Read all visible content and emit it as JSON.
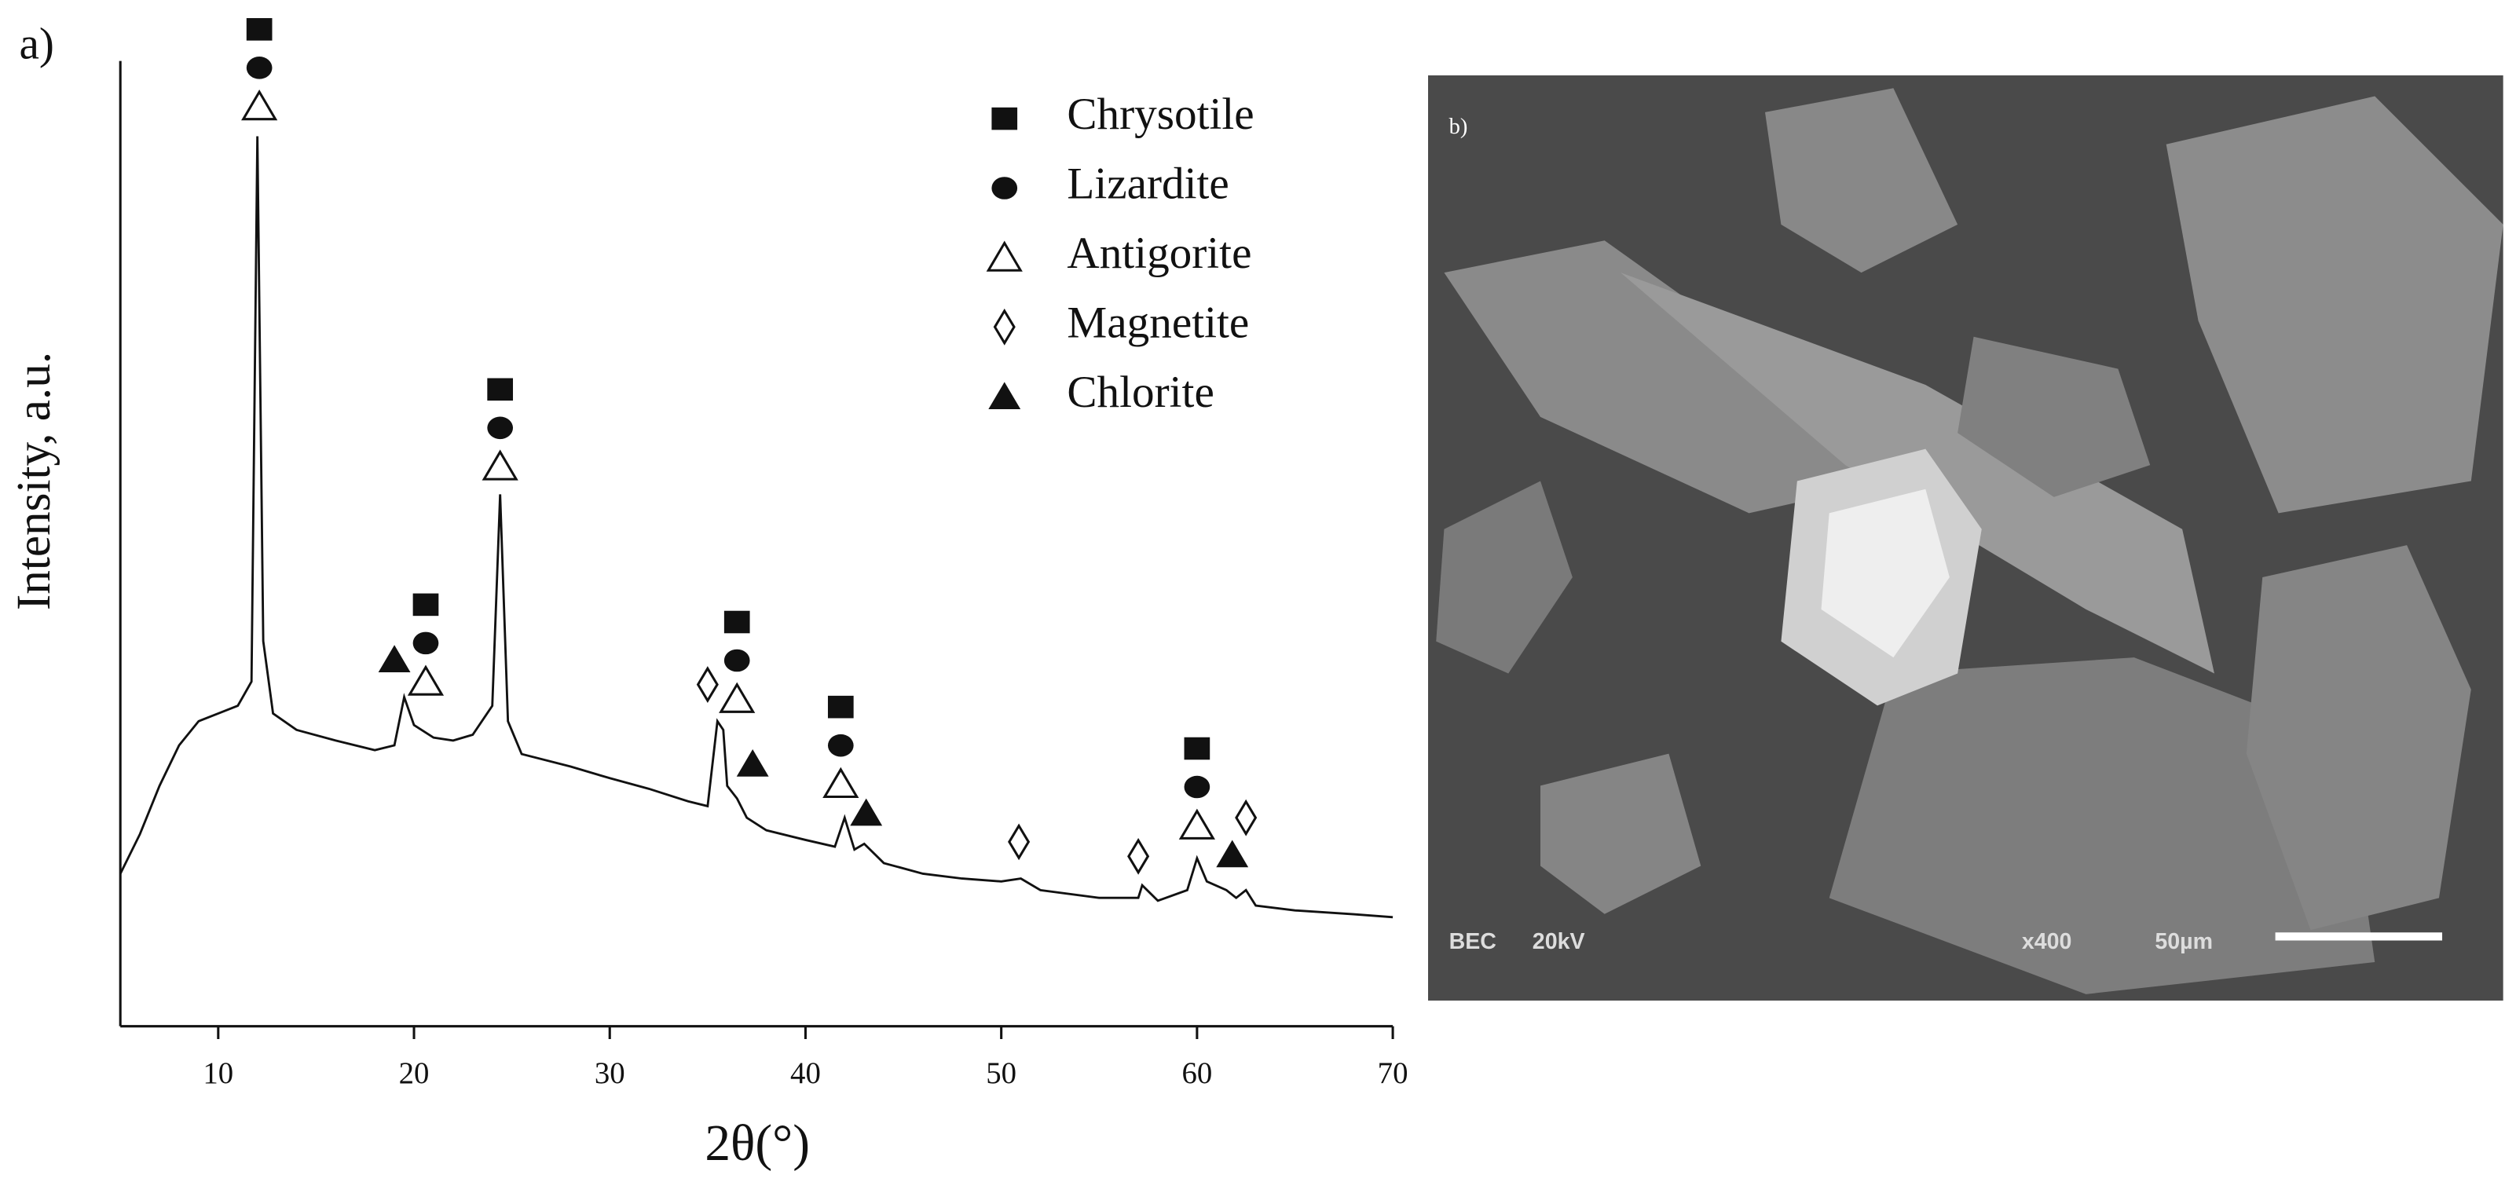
{
  "chart_data": {
    "type": "line",
    "x_label": "2θ(°)",
    "y_label": "Intensity, a.u.",
    "color": "#111111",
    "xlim": [
      5,
      70
    ],
    "xticks": [
      10,
      20,
      30,
      40,
      50,
      60,
      70
    ],
    "ylim": [
      0,
      100
    ],
    "x": [
      5,
      6,
      7,
      8,
      9,
      10,
      11,
      11.7,
      12.0,
      12.3,
      12.8,
      14,
      16,
      18,
      19,
      19.5,
      20,
      21,
      22,
      23,
      24,
      24.4,
      24.8,
      25.5,
      28,
      30,
      32,
      34,
      35,
      35.5,
      35.8,
      36,
      36.5,
      37,
      38,
      40,
      41.5,
      42,
      42.5,
      43,
      44,
      46,
      48,
      50,
      51,
      52,
      55,
      57,
      57.2,
      58,
      59.5,
      60,
      60.5,
      61.5,
      62,
      62.5,
      63,
      65,
      68,
      70
    ],
    "values": [
      15.8,
      19.9,
      24.9,
      29.1,
      31.6,
      32.4,
      33.2,
      35.7,
      92.2,
      39.9,
      32.4,
      30.7,
      29.6,
      28.6,
      29.1,
      34.1,
      31.2,
      29.9,
      29.6,
      30.2,
      33.2,
      55.1,
      31.6,
      28.2,
      26.9,
      25.7,
      24.6,
      23.3,
      22.8,
      31.6,
      30.7,
      24.9,
      23.6,
      21.6,
      20.3,
      19.3,
      18.6,
      21.6,
      18.3,
      18.9,
      16.9,
      15.8,
      15.3,
      15.0,
      15.3,
      14.1,
      13.3,
      13.3,
      14.6,
      13.0,
      14.1,
      17.4,
      15.0,
      14.1,
      13.3,
      14.1,
      12.5,
      12.0,
      11.6,
      11.3
    ],
    "legend": [
      {
        "name": "Chrysotile",
        "shape": "square",
        "filled": true
      },
      {
        "name": "Lizardite",
        "shape": "circle",
        "filled": true
      },
      {
        "name": "Antigorite",
        "shape": "triangle",
        "filled": false
      },
      {
        "name": "Magnetite",
        "shape": "diamond",
        "filled": false
      },
      {
        "name": "Chlorite",
        "shape": "triangle",
        "filled": true
      }
    ],
    "peak_markers": [
      {
        "x": 12.1,
        "y": 95.3,
        "phases": [
          0,
          1,
          2
        ]
      },
      {
        "x": 19.0,
        "y": 38.0,
        "phases": [
          4
        ]
      },
      {
        "x": 20.6,
        "y": 35.7,
        "phases": [
          0,
          1,
          2
        ]
      },
      {
        "x": 24.4,
        "y": 58.0,
        "phases": [
          0,
          1,
          2
        ]
      },
      {
        "x": 35.0,
        "y": 35.4,
        "phases": [
          3
        ]
      },
      {
        "x": 36.5,
        "y": 33.9,
        "phases": [
          0,
          1,
          2
        ]
      },
      {
        "x": 37.3,
        "y": 27.2,
        "phases": [
          4
        ]
      },
      {
        "x": 41.8,
        "y": 25.1,
        "phases": [
          0,
          1,
          2
        ]
      },
      {
        "x": 43.1,
        "y": 22.1,
        "phases": [
          4
        ]
      },
      {
        "x": 50.9,
        "y": 19.1,
        "phases": [
          3
        ]
      },
      {
        "x": 57.0,
        "y": 17.6,
        "phases": [
          3
        ]
      },
      {
        "x": 60.0,
        "y": 20.8,
        "phases": [
          0,
          1,
          2
        ]
      },
      {
        "x": 61.8,
        "y": 17.8,
        "phases": [
          4
        ]
      },
      {
        "x": 62.5,
        "y": 21.6,
        "phases": [
          3
        ]
      }
    ]
  },
  "panel_labels": {
    "a": "a)",
    "b": "b)"
  },
  "sem_image": {
    "labels": [
      "BEC",
      "20kV",
      "x400",
      "50µm"
    ]
  }
}
